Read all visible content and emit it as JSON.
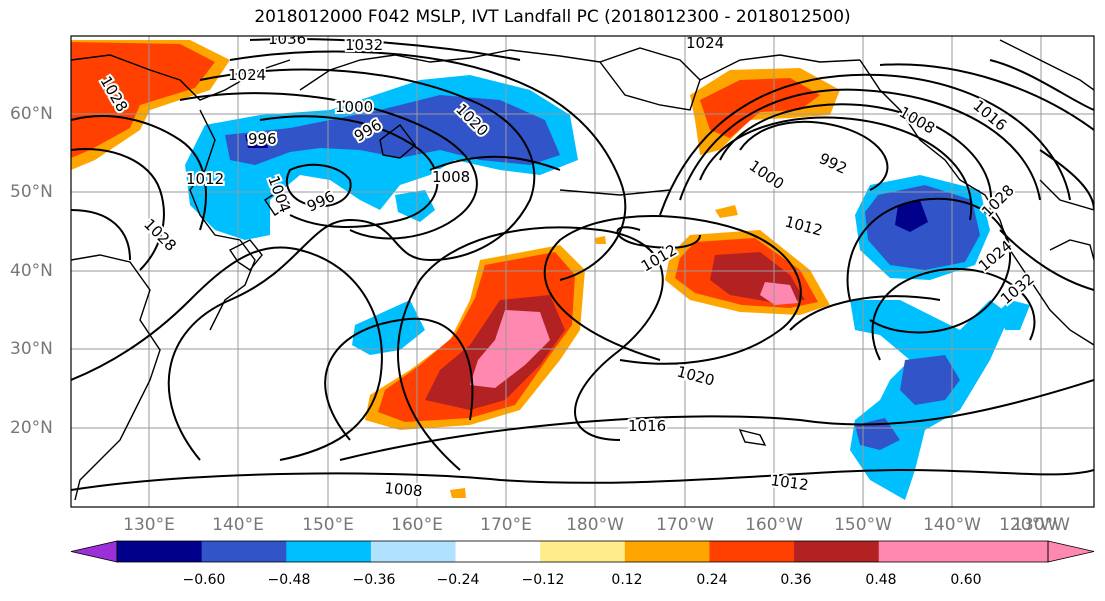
{
  "title": "2018012000 F042 MSLP, IVT Landfall PC (2018012300 - 2018012500)",
  "lat_labels": [
    "60°N",
    "50°N",
    "40°N",
    "30°N",
    "20°N"
  ],
  "lon_labels": [
    "130°E",
    "140°E",
    "150°E",
    "160°E",
    "170°E",
    "180°W",
    "170°W",
    "160°W",
    "150°W",
    "140°W",
    "130°W",
    "120°W"
  ],
  "contour_labels": [
    "1036",
    "1032",
    "1024",
    "1024",
    "1028",
    "1028",
    "1000",
    "996",
    "996",
    "1012",
    "1004",
    "1020",
    "1008",
    "996",
    "992",
    "1000",
    "1008",
    "1016",
    "1012",
    "1012",
    "1020",
    "1016",
    "1008",
    "1012",
    "1024",
    "1032",
    "1028"
  ],
  "colorbar": {
    "tick_labels": [
      "−0.60",
      "−0.48",
      "−0.36",
      "−0.24",
      "−0.12",
      "0.12",
      "0.24",
      "0.36",
      "0.48",
      "0.60"
    ],
    "colors": [
      "#9b30d8",
      "#00008b",
      "#3155c8",
      "#00bfff",
      "#b0e2ff",
      "#ffffff",
      "#ffec8b",
      "#ffa500",
      "#ff4000",
      "#b22222",
      "#ff88b0",
      "#ff88b0"
    ]
  },
  "palette": {
    "pos1": "#ffec8b",
    "pos2": "#ffa500",
    "pos3": "#ff4000",
    "pos4": "#b22222",
    "pos5": "#ff88b0",
    "neg1": "#b0e2ff",
    "neg2": "#00bfff",
    "neg3": "#3155c8",
    "neg4": "#00008b"
  }
}
